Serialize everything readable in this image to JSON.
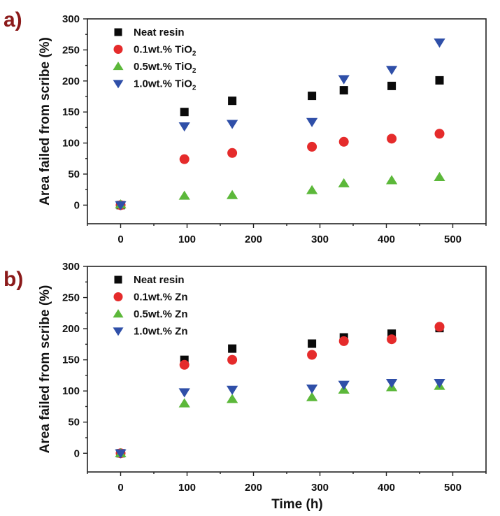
{
  "colors": {
    "neat": "#0a0a0a",
    "p01": "#e52b2b",
    "p05": "#5cb83a",
    "p10": "#2f4fa8",
    "label": "#8b1a1a"
  },
  "chart_data": [
    {
      "panel_label": "a)",
      "type": "scatter",
      "title": "",
      "xlabel": "",
      "ylabel": "Area failed from scribe (%)",
      "xlim": [
        -50,
        550
      ],
      "ylim": [
        -30,
        300
      ],
      "xticks": [
        0,
        100,
        200,
        300,
        400,
        500
      ],
      "yticks": [
        0,
        50,
        100,
        150,
        200,
        250,
        300
      ],
      "legend_position": "top-left",
      "series": [
        {
          "name": "Neat resin",
          "legend_main": "Neat resin",
          "legend_sub": "",
          "marker": "square",
          "color_key": "neat",
          "x": [
            0,
            96,
            168,
            288,
            336,
            408,
            480
          ],
          "y": [
            0,
            150,
            168,
            176,
            185,
            192,
            201
          ]
        },
        {
          "name": "0.1wt.% TiO2",
          "legend_main": "0.1wt.% TiO",
          "legend_sub": "2",
          "marker": "circle",
          "color_key": "p01",
          "x": [
            0,
            96,
            168,
            288,
            336,
            408,
            480
          ],
          "y": [
            0,
            74,
            84,
            94,
            102,
            107,
            115
          ]
        },
        {
          "name": "0.5wt.% TiO2",
          "legend_main": "0.5wt.% TiO",
          "legend_sub": "2",
          "marker": "triangle-up",
          "color_key": "p05",
          "x": [
            0,
            96,
            168,
            288,
            336,
            408,
            480
          ],
          "y": [
            1,
            15,
            16,
            24,
            35,
            40,
            45
          ]
        },
        {
          "name": "1.0wt.% TiO2",
          "legend_main": "1.0wt.% TiO",
          "legend_sub": "2",
          "marker": "triangle-down",
          "color_key": "p10",
          "x": [
            0,
            96,
            168,
            288,
            336,
            408,
            480
          ],
          "y": [
            0,
            127,
            131,
            134,
            203,
            218,
            262
          ]
        }
      ]
    },
    {
      "panel_label": "b)",
      "type": "scatter",
      "title": "",
      "xlabel": "Time (h)",
      "ylabel": "Area failed from scribe (%)",
      "xlim": [
        -50,
        550
      ],
      "ylim": [
        -30,
        300
      ],
      "xticks": [
        0,
        100,
        200,
        300,
        400,
        500
      ],
      "yticks": [
        0,
        50,
        100,
        150,
        200,
        250,
        300
      ],
      "legend_position": "top-left",
      "series": [
        {
          "name": "Neat resin",
          "legend_main": "Neat resin",
          "legend_sub": "",
          "marker": "square",
          "color_key": "neat",
          "x": [
            0,
            96,
            168,
            288,
            336,
            408,
            480
          ],
          "y": [
            0,
            150,
            168,
            176,
            186,
            192,
            201
          ]
        },
        {
          "name": "0.1wt.% Zn",
          "legend_main": "0.1wt.% Zn",
          "legend_sub": "",
          "marker": "circle",
          "color_key": "p01",
          "x": [
            0,
            96,
            168,
            288,
            336,
            408,
            480
          ],
          "y": [
            0,
            142,
            150,
            158,
            180,
            183,
            203
          ]
        },
        {
          "name": "0.5wt.% Zn",
          "legend_main": "0.5wt.% Zn",
          "legend_sub": "",
          "marker": "triangle-up",
          "color_key": "p05",
          "x": [
            0,
            96,
            168,
            288,
            336,
            408,
            480
          ],
          "y": [
            0,
            80,
            87,
            90,
            102,
            106,
            108
          ]
        },
        {
          "name": "1.0wt.% Zn",
          "legend_main": "1.0wt.% Zn",
          "legend_sub": "",
          "marker": "triangle-down",
          "color_key": "p10",
          "x": [
            0,
            96,
            168,
            288,
            336,
            408,
            480
          ],
          "y": [
            0,
            98,
            102,
            104,
            110,
            113,
            113
          ]
        }
      ]
    }
  ]
}
